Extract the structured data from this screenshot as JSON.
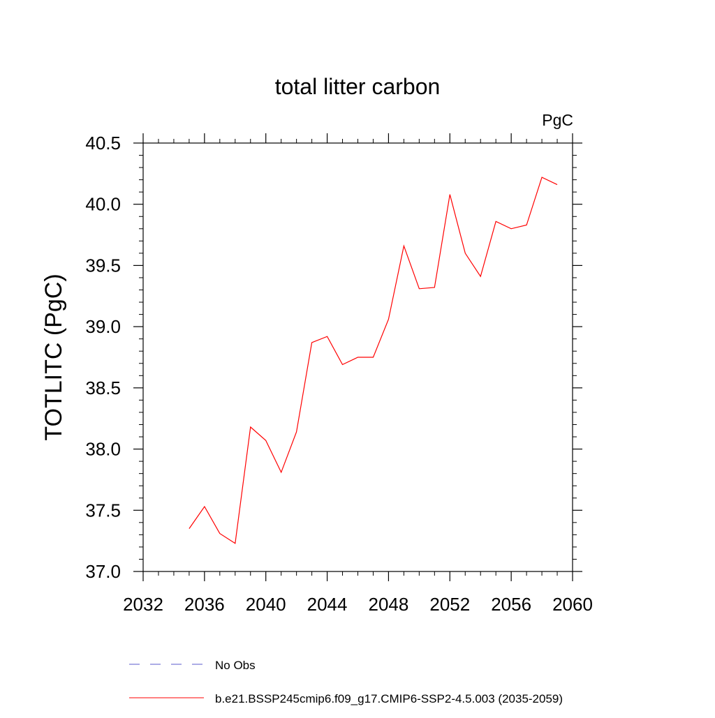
{
  "chart_data": {
    "type": "line",
    "title": "total litter carbon",
    "units_label": "PgC",
    "ylabel": "TOTLITC  (PgC)",
    "xlabel": "",
    "xlim": [
      2032,
      2060
    ],
    "ylim": [
      37.0,
      40.5
    ],
    "x_ticks": [
      2032,
      2036,
      2040,
      2044,
      2048,
      2052,
      2056,
      2060
    ],
    "x_tick_labels": [
      "2032",
      "2036",
      "2040",
      "2044",
      "2048",
      "2052",
      "2056",
      "2060"
    ],
    "y_ticks": [
      37.0,
      37.5,
      38.0,
      38.5,
      39.0,
      39.5,
      40.0,
      40.5
    ],
    "y_tick_labels": [
      "37.0",
      "37.5",
      "38.0",
      "38.5",
      "39.0",
      "39.5",
      "40.0",
      "40.5"
    ],
    "grid": false,
    "legend_position": "bottom",
    "series": [
      {
        "name": "b.e21.BSSP245cmip6.f09_g17.CMIP6-SSP2-4.5.003 (2035-2059)",
        "color": "#ff0000",
        "style": "solid",
        "x": [
          2035,
          2036,
          2037,
          2038,
          2039,
          2040,
          2041,
          2042,
          2043,
          2044,
          2045,
          2046,
          2047,
          2048,
          2049,
          2050,
          2051,
          2052,
          2053,
          2054,
          2055,
          2056,
          2057,
          2058,
          2059
        ],
        "y": [
          37.35,
          37.53,
          37.31,
          37.23,
          38.18,
          38.07,
          37.81,
          38.14,
          38.87,
          38.92,
          38.69,
          38.75,
          38.75,
          39.06,
          39.66,
          39.31,
          39.32,
          40.08,
          39.6,
          39.41,
          39.86,
          39.8,
          39.83,
          40.22,
          40.16
        ]
      }
    ],
    "legend": [
      {
        "label": "No Obs",
        "color": "#5a5acd",
        "style": "dashed"
      },
      {
        "label": "b.e21.BSSP245cmip6.f09_g17.CMIP6-SSP2-4.5.003 (2035-2059)",
        "color": "#ff0000",
        "style": "solid"
      }
    ]
  }
}
